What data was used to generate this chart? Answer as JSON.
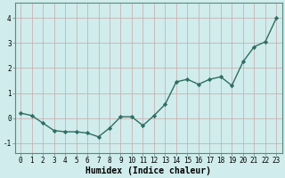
{
  "x": [
    0,
    1,
    2,
    3,
    4,
    5,
    6,
    7,
    8,
    9,
    10,
    11,
    12,
    13,
    14,
    15,
    16,
    17,
    18,
    19,
    20,
    21,
    22,
    23
  ],
  "y": [
    0.2,
    0.1,
    -0.2,
    -0.5,
    -0.55,
    -0.55,
    -0.6,
    -0.75,
    -0.4,
    0.05,
    0.05,
    -0.3,
    0.1,
    0.55,
    1.45,
    1.55,
    1.35,
    1.55,
    1.65,
    1.3,
    2.25,
    2.85,
    3.05,
    4.0
  ],
  "line_color": "#2e6e63",
  "marker": "D",
  "marker_size": 2.2,
  "xlabel": "Humidex (Indice chaleur)",
  "xlim": [
    -0.5,
    23.5
  ],
  "ylim": [
    -1.4,
    4.6
  ],
  "yticks": [
    -1,
    0,
    1,
    2,
    3,
    4
  ],
  "xticks": [
    0,
    1,
    2,
    3,
    4,
    5,
    6,
    7,
    8,
    9,
    10,
    11,
    12,
    13,
    14,
    15,
    16,
    17,
    18,
    19,
    20,
    21,
    22,
    23
  ],
  "bg_color": "#d0ecec",
  "grid_color": "#b0d0d0",
  "tick_fontsize": 5.5,
  "xlabel_fontsize": 7.0,
  "line_width": 1.0
}
